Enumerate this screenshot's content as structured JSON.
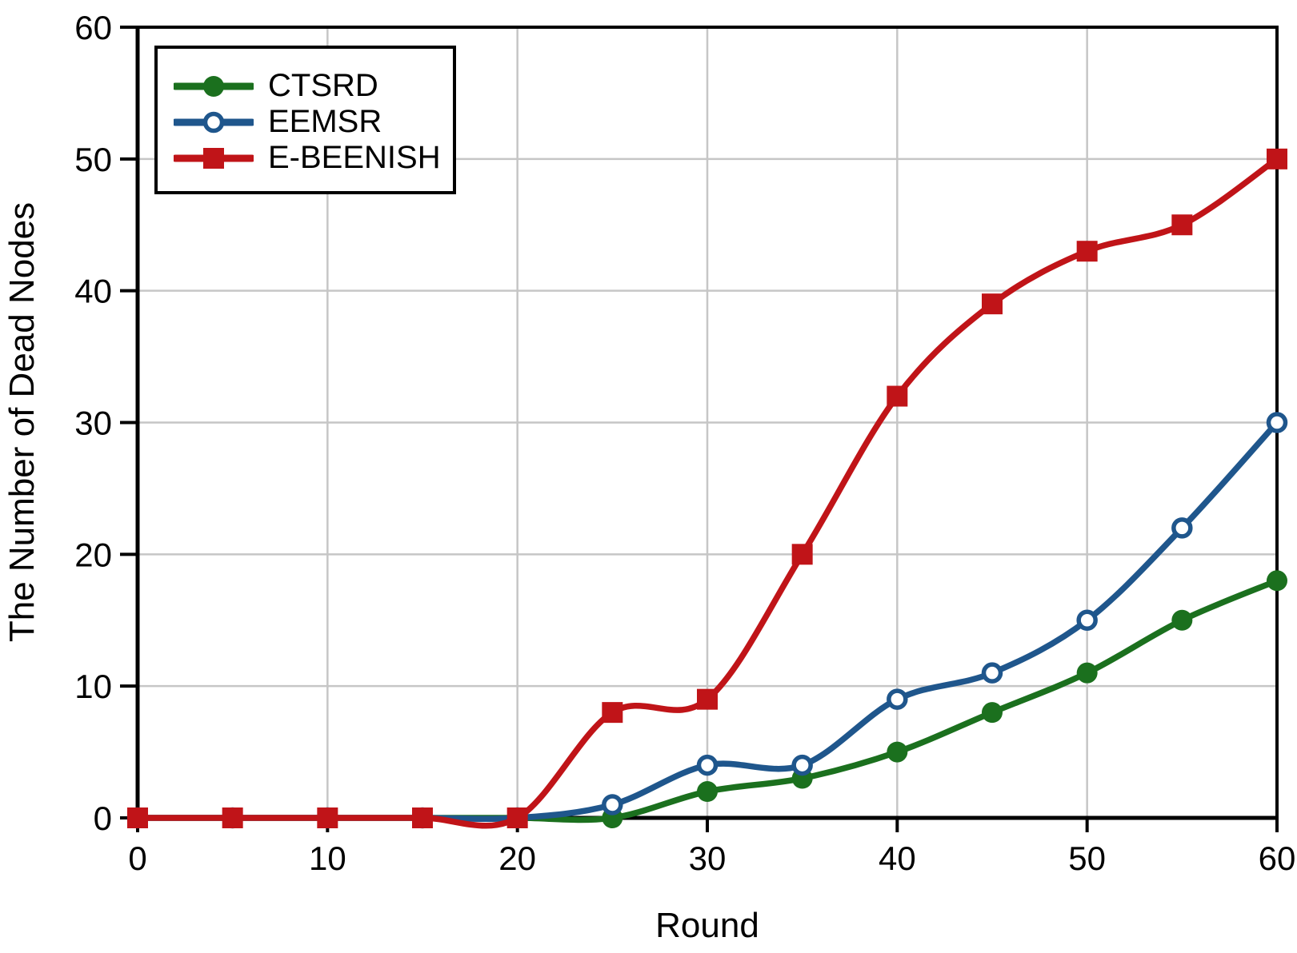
{
  "chart_data": {
    "type": "line",
    "title": "",
    "xlabel": "Round",
    "ylabel": "The Number of Dead Nodes",
    "xlim": [
      0,
      60
    ],
    "ylim": [
      0,
      60
    ],
    "xticks": [
      0,
      10,
      20,
      30,
      40,
      50,
      60
    ],
    "yticks": [
      0,
      10,
      20,
      30,
      40,
      50,
      60
    ],
    "grid": true,
    "legend_position": "top-left",
    "x": [
      0,
      5,
      10,
      15,
      20,
      25,
      30,
      35,
      40,
      45,
      50,
      55,
      60
    ],
    "series": [
      {
        "name": "CTSRD",
        "color": "#1B701E",
        "marker": "filled-circle",
        "values": [
          0,
          0,
          0,
          0,
          0,
          0,
          2,
          3,
          5,
          8,
          11,
          15,
          18
        ]
      },
      {
        "name": "EEMSR",
        "color": "#1F568C",
        "marker": "open-circle",
        "values": [
          0,
          0,
          0,
          0,
          0,
          1,
          4,
          4,
          9,
          11,
          15,
          22,
          30
        ]
      },
      {
        "name": "E-BEENISH",
        "color": "#C01418",
        "marker": "filled-square",
        "values": [
          0,
          0,
          0,
          0,
          0,
          8,
          9,
          20,
          32,
          39,
          43,
          45,
          50
        ]
      }
    ]
  },
  "colors": {
    "background": "#FFFFFF",
    "axis": "#000000",
    "grid": "#C6C6C6",
    "text": "#000000"
  }
}
